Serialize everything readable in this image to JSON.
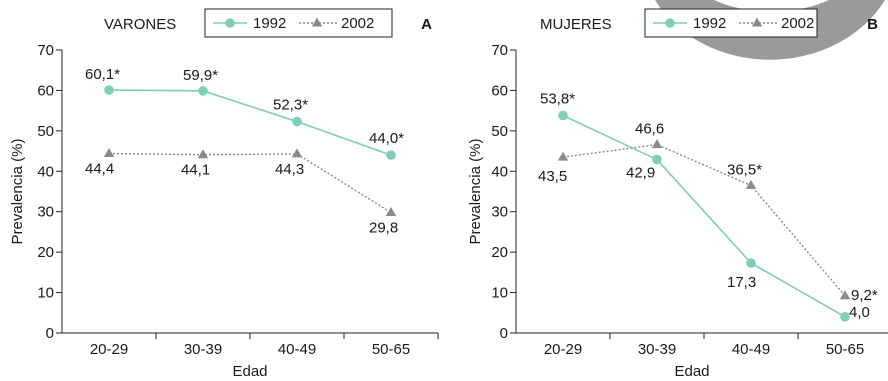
{
  "colors": {
    "series_1992": "#7fcfb5",
    "series_2002": "#8a8a8a",
    "axis": "#222222",
    "decoration": "#9a9a9a"
  },
  "chart_data": [
    {
      "type": "line",
      "panel_letter": "A",
      "title": "VARONES",
      "xlabel": "Edad",
      "ylabel": "Prevalencia (%)",
      "ylim": [
        0,
        70
      ],
      "yticks": [
        0,
        10,
        20,
        30,
        40,
        50,
        60,
        70
      ],
      "categories": [
        "20-29",
        "30-39",
        "40-49",
        "50-65"
      ],
      "legend_position": "top-right",
      "series": [
        {
          "name": "1992",
          "marker": "circle",
          "values": [
            60.1,
            59.9,
            52.3,
            44.0
          ],
          "labels": [
            "60,1*",
            "59,9*",
            "52,3*",
            "44,0*"
          ]
        },
        {
          "name": "2002",
          "marker": "triangle",
          "values": [
            44.4,
            44.1,
            44.3,
            29.8
          ],
          "labels": [
            "44,4",
            "44,1",
            "44,3",
            "29,8"
          ]
        }
      ]
    },
    {
      "type": "line",
      "panel_letter": "B",
      "title": "MUJERES",
      "xlabel": "Edad",
      "ylabel": "Prevalencia (%)",
      "ylim": [
        0,
        70
      ],
      "yticks": [
        0,
        10,
        20,
        30,
        40,
        50,
        60,
        70
      ],
      "categories": [
        "20-29",
        "30-39",
        "40-49",
        "50-65"
      ],
      "legend_position": "top-right",
      "series": [
        {
          "name": "1992",
          "marker": "circle",
          "values": [
            53.8,
            42.9,
            17.3,
            4.0
          ],
          "labels": [
            "53,8*",
            "42,9",
            "17,3",
            "4,0"
          ]
        },
        {
          "name": "2002",
          "marker": "triangle",
          "values": [
            43.5,
            46.6,
            36.5,
            9.2
          ],
          "labels": [
            "43,5",
            "46,6",
            "36,5*",
            "9,2*"
          ]
        }
      ]
    }
  ]
}
